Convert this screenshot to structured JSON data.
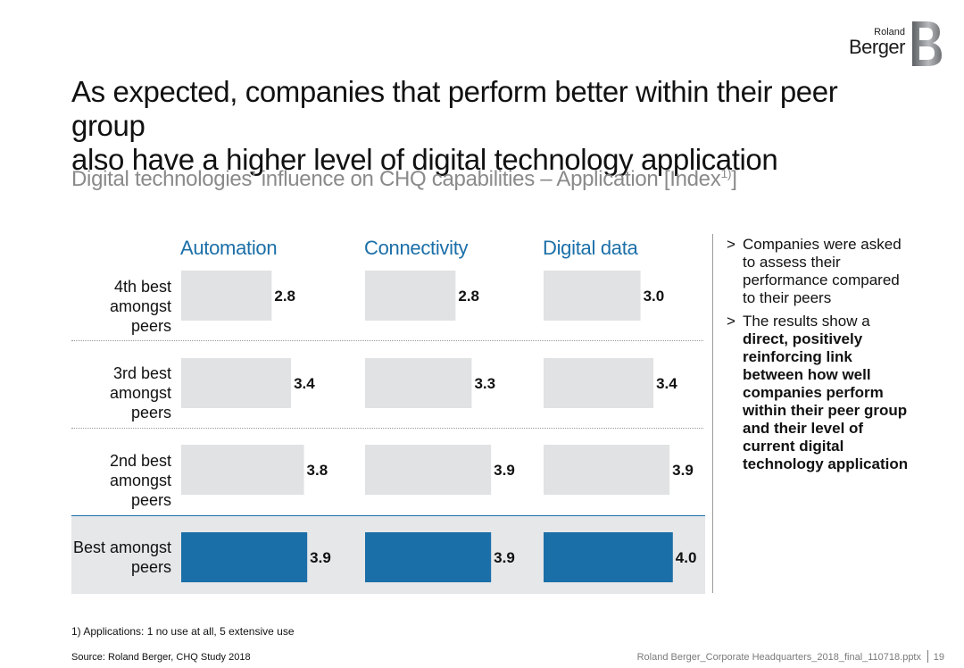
{
  "logo": {
    "small": "Roland",
    "big": "Berger"
  },
  "title": {
    "line1": "As expected, companies that perform better within their peer group",
    "line2": "also have a higher level of digital technology application"
  },
  "subtitle": {
    "text": "Digital technologies' influence on CHQ capabilities – Application [Index",
    "sup": "1)",
    "close": "]"
  },
  "chart_data": {
    "type": "bar",
    "orientation": "horizontal",
    "categories": [
      "4th best amongst peers",
      "3rd best amongst peers",
      "2nd best amongst peers",
      "Best amongst peers"
    ],
    "row_labels": [
      {
        "line1": "4th best",
        "line2": "amongst peers"
      },
      {
        "line1": "3rd best",
        "line2": "amongst peers"
      },
      {
        "line1": "2nd best",
        "line2": "amongst peers"
      },
      {
        "line1": "Best amongst",
        "line2": "peers"
      }
    ],
    "series": [
      {
        "name": "Automation",
        "values": [
          2.8,
          3.4,
          3.8,
          3.9
        ]
      },
      {
        "name": "Connectivity",
        "values": [
          2.8,
          3.3,
          3.9,
          3.9
        ]
      },
      {
        "name": "Digital data",
        "values": [
          3.0,
          3.4,
          3.9,
          4.0
        ]
      }
    ],
    "xlim": [
      0,
      5
    ],
    "highlighted_category": "Best amongst peers",
    "colors": {
      "default_bar": "#e1e2e4",
      "highlight_bar": "#1b6fa8",
      "category_label": "#1b6fa8"
    }
  },
  "bullets": [
    {
      "text": "Companies were asked to assess their performance compared to their peers"
    },
    {
      "pre": "The results show a ",
      "bold": "direct, positively reinforcing link between how well companies perform within their peer group and their level of current digital technology application"
    }
  ],
  "footnote": "1) Applications: 1 no use at all, 5 extensive use",
  "source": "Source: Roland Berger, CHQ Study 2018",
  "filename": "Roland Berger_Corporate Headquarters_2018_final_110718.pptx",
  "page_number": "19"
}
